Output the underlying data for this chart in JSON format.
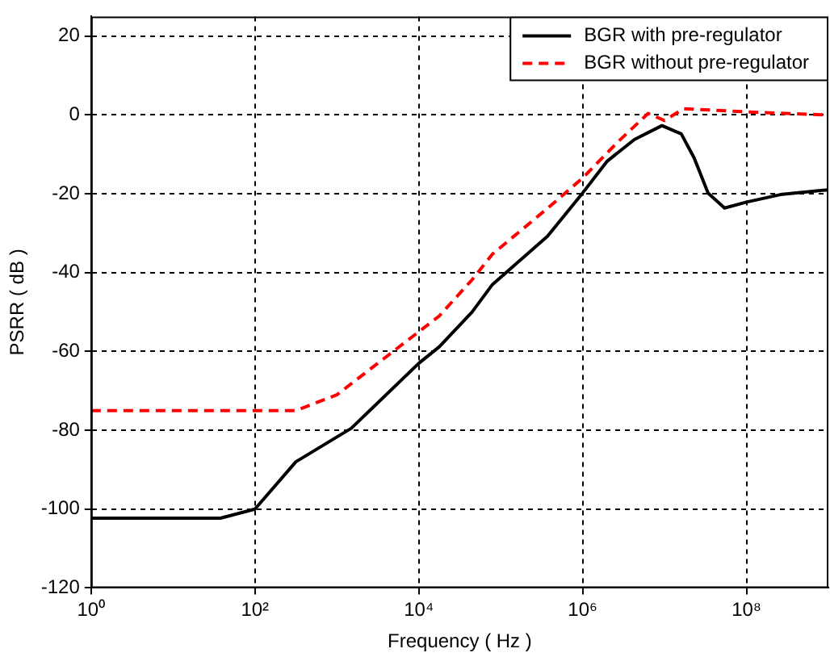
{
  "chart_data": {
    "type": "line",
    "xlabel": "Frequency ( Hz )",
    "ylabel": "PSRR ( dB )",
    "log": "x",
    "xlim": [
      1,
      1000000000
    ],
    "xticks": [
      {
        "value": 1,
        "label": "10⁰"
      },
      {
        "value": 100,
        "label": "10²"
      },
      {
        "value": 10000,
        "label": "10⁴"
      },
      {
        "value": 1000000,
        "label": "10⁶"
      },
      {
        "value": 100000000,
        "label": "10⁸"
      }
    ],
    "ylim": [
      -120,
      25
    ],
    "yticks": [
      -120,
      -100,
      -80,
      -60,
      -40,
      -20,
      0,
      20
    ],
    "grid": true,
    "legend": "top right",
    "marker": "none",
    "series": [
      {
        "name": "BGR with pre-regulator",
        "color": "#000000",
        "line_style": "solid",
        "x": [
          1,
          38,
          100,
          316,
          1500,
          10000,
          17800,
          44700,
          79400,
          372000,
          1000000,
          2000000,
          4300000,
          9300000,
          16000000,
          23000000,
          34000000,
          54000000,
          100000000,
          260000000,
          760000000,
          1000000000
        ],
        "values": [
          -102.3,
          -102.3,
          -100,
          -88,
          -79.5,
          -63,
          -58.8,
          -50,
          -43,
          -30.8,
          -19.8,
          -11.7,
          -6.2,
          -2.7,
          -4.8,
          -10.9,
          -19.8,
          -23.6,
          -22.1,
          -20.2,
          -19.2,
          -19
        ]
      },
      {
        "name": "BGR without pre-regulator",
        "color": "#ff0000",
        "line_style": "dashed",
        "x": [
          1,
          316,
          1000,
          10000,
          17800,
          44700,
          79400,
          372000,
          1000000,
          2700000,
          6300000,
          10000000,
          17000000,
          100000000,
          1000000000
        ],
        "values": [
          -75,
          -75,
          -71,
          -55,
          -51,
          -41.8,
          -35.3,
          -23.7,
          -16,
          -6.8,
          0.4,
          -1.4,
          1.6,
          0.8,
          0
        ]
      }
    ]
  }
}
